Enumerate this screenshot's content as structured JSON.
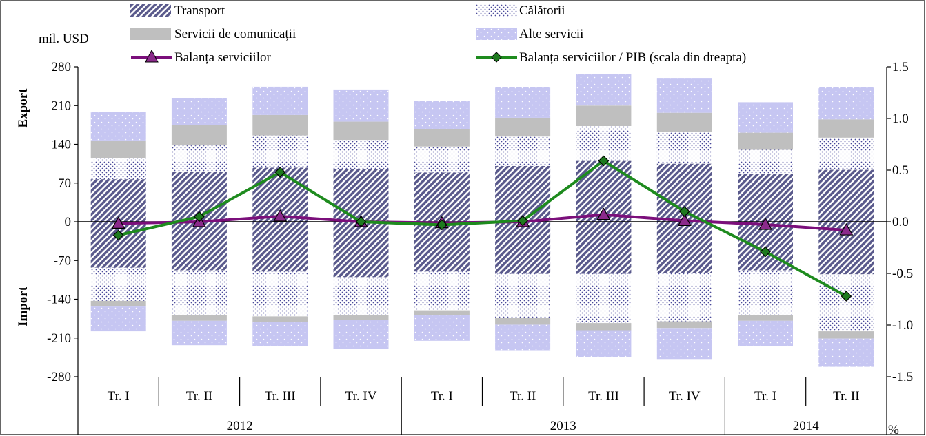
{
  "chart_data": {
    "type": "bar",
    "subtype": "stacked-bar-with-lines",
    "left_axis": {
      "unit": "mil. USD",
      "ylim": [
        -280,
        280
      ],
      "ticks": [
        -280,
        -210,
        -140,
        -70,
        0,
        70,
        140,
        210,
        280
      ],
      "tick_labels": [
        "-280",
        "-210",
        "-140",
        "-70",
        "0",
        "70",
        "140",
        "210",
        "280"
      ],
      "label_top": "Export",
      "label_bottom": "Import"
    },
    "right_axis": {
      "unit": "%",
      "ylim": [
        -1.5,
        1.5
      ],
      "ticks": [
        -1.5,
        -1.0,
        -0.5,
        0.0,
        0.5,
        1.0,
        1.5
      ],
      "tick_labels": [
        "-1.5",
        "-1.0",
        "-0.5",
        "0.0",
        "0.5",
        "1.0",
        "1.5"
      ]
    },
    "categories": [
      "Tr. I",
      "Tr. II",
      "Tr. III",
      "Tr. IV",
      "Tr. I",
      "Tr. II",
      "Tr. III",
      "Tr. IV",
      "Tr. I",
      "Tr. II"
    ],
    "years": [
      {
        "label": "2012",
        "span": 4
      },
      {
        "label": "2013",
        "span": 4
      },
      {
        "label": "2014",
        "span": 2
      }
    ],
    "bar_series": [
      {
        "name": "Transport",
        "pattern": "diagonal",
        "export": [
          77,
          91,
          98,
          95,
          89,
          101,
          110,
          105,
          87,
          94
        ],
        "import": [
          -83,
          -88,
          -90,
          -100,
          -90,
          -94,
          -94,
          -93,
          -88,
          -95
        ]
      },
      {
        "name": "Călătorii",
        "pattern": "dots",
        "export": [
          38,
          47,
          58,
          53,
          47,
          53,
          63,
          58,
          43,
          58
        ],
        "import": [
          -60,
          -81,
          -81,
          -69,
          -70,
          -79,
          -89,
          -87,
          -81,
          -103
        ]
      },
      {
        "name": "Servicii de comunicații",
        "pattern": "solid",
        "export": [
          32,
          37,
          37,
          33,
          31,
          34,
          37,
          34,
          31,
          33
        ],
        "import": [
          -9,
          -10,
          -10,
          -9,
          -9,
          -13,
          -13,
          -12,
          -10,
          -13
        ]
      },
      {
        "name": "Alte servicii",
        "pattern": "light-dots",
        "export": [
          52,
          48,
          51,
          58,
          52,
          55,
          57,
          63,
          55,
          58
        ],
        "import": [
          -46,
          -44,
          -43,
          -52,
          -46,
          -46,
          -49,
          -56,
          -46,
          -51
        ]
      }
    ],
    "line_series": [
      {
        "name": "Balanța serviciilor",
        "axis": "left",
        "color": "#7B0F7B",
        "marker": "triangle",
        "marker_fill": "#8B2A8B",
        "values": [
          -3,
          0,
          10,
          0,
          -2,
          0,
          13,
          2,
          -5,
          -15
        ]
      },
      {
        "name": "Balanța serviciilor / PIB (scala din dreapta)",
        "axis": "right",
        "color": "#1E8B1E",
        "marker": "diamond",
        "marker_fill": "#1E7A1E",
        "values": [
          -0.13,
          0.05,
          0.48,
          0.0,
          -0.03,
          0.01,
          0.59,
          0.1,
          -0.29,
          -0.72
        ]
      }
    ],
    "colors": {
      "transport": "#5A5A8C",
      "calatorii": "#4A4A9A",
      "comunicatii": "#BFBFBF",
      "alte": "#C6C6F2",
      "balance_line": "#7B0F7B",
      "balance_pib_line": "#1E8B1E",
      "axis": "#000000"
    },
    "legend_position": "top",
    "grid": false
  }
}
